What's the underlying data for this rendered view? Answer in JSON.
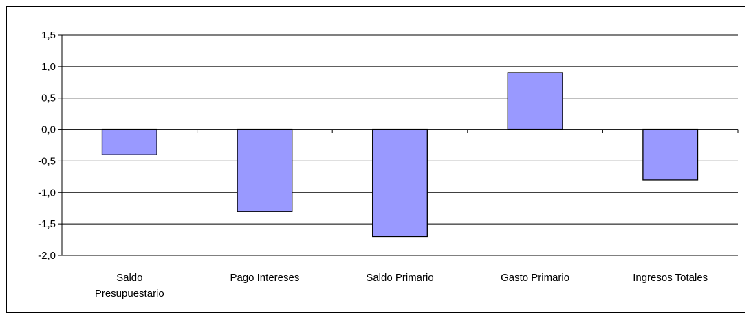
{
  "chart_data": {
    "type": "bar",
    "categories": [
      [
        "Saldo",
        "Presupuestario"
      ],
      [
        "Pago Intereses"
      ],
      [
        "Saldo Primario"
      ],
      [
        "Gasto Primario"
      ],
      [
        "Ingresos Totales"
      ]
    ],
    "values": [
      -0.4,
      -1.3,
      -1.7,
      0.9,
      -0.8
    ],
    "ylim": [
      -2.0,
      1.5
    ],
    "yticks": [
      1.5,
      1.0,
      0.5,
      0.0,
      -0.5,
      -1.0,
      -1.5,
      -2.0
    ],
    "ytick_labels": [
      "1,5",
      "1,0",
      "0,5",
      "0,0",
      "-0,5",
      "-1,0",
      "-1,5",
      "-2,0"
    ],
    "grid": true,
    "bar_color": "#9999ff",
    "title": "",
    "xlabel": "",
    "ylabel": ""
  }
}
